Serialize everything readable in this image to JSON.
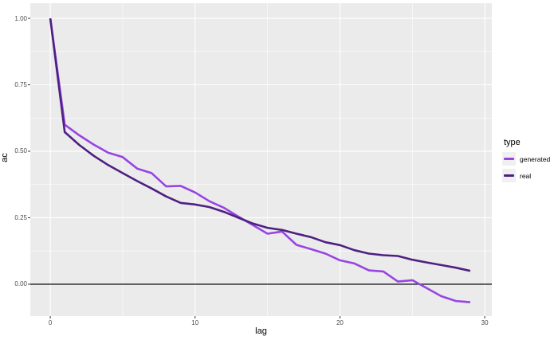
{
  "chart_data": {
    "type": "line",
    "title": "",
    "xlabel": "lag",
    "ylabel": "ac",
    "legend_title": "type",
    "legend_position": "right",
    "grid": true,
    "x": [
      0,
      1,
      2,
      3,
      4,
      5,
      6,
      7,
      8,
      9,
      10,
      11,
      12,
      13,
      14,
      15,
      16,
      17,
      18,
      19,
      20,
      21,
      22,
      23,
      24,
      25,
      26,
      27,
      28,
      29
    ],
    "series": [
      {
        "name": "generated",
        "color": "#9745E2",
        "values": [
          1.0,
          0.6,
          0.56,
          0.525,
          0.495,
          0.478,
          0.435,
          0.418,
          0.368,
          0.37,
          0.345,
          0.312,
          0.287,
          0.254,
          0.222,
          0.19,
          0.198,
          0.148,
          0.132,
          0.115,
          0.09,
          0.078,
          0.052,
          0.048,
          0.01,
          0.015,
          -0.015,
          -0.045,
          -0.063,
          -0.068
        ]
      },
      {
        "name": "real",
        "color": "#4E2083",
        "values": [
          1.0,
          0.572,
          0.524,
          0.483,
          0.448,
          0.418,
          0.388,
          0.36,
          0.33,
          0.306,
          0.3,
          0.29,
          0.272,
          0.25,
          0.228,
          0.212,
          0.204,
          0.19,
          0.177,
          0.158,
          0.147,
          0.128,
          0.115,
          0.109,
          0.106,
          0.092,
          0.082,
          0.072,
          0.062,
          0.05
        ]
      }
    ],
    "xlim": [
      -1.38,
      30.49
    ],
    "ylim": [
      -0.12,
      1.057
    ],
    "xticks": [
      0,
      10,
      20,
      30
    ],
    "xtick_labels": [
      "0",
      "10",
      "20",
      "30"
    ],
    "yticks": [
      0,
      0.25,
      0.5,
      0.75,
      1.0
    ],
    "ytick_labels": [
      "0.00",
      "0.25",
      "0.50",
      "0.75",
      "1.00"
    ],
    "x_minor": [
      5,
      15,
      25
    ],
    "y_minor": [
      0.125,
      0.375,
      0.625,
      0.875
    ],
    "hline": 0
  },
  "style": {
    "panel_bg": "#EBEBEB",
    "grid_color": "#FFFFFF",
    "axis_text_color": "#4D4D4D",
    "tick_mark_color": "#333333",
    "hline_color": "#1A1A1A",
    "legend_key_bg": "#F0F0F0",
    "background": "#FFFFFF"
  }
}
